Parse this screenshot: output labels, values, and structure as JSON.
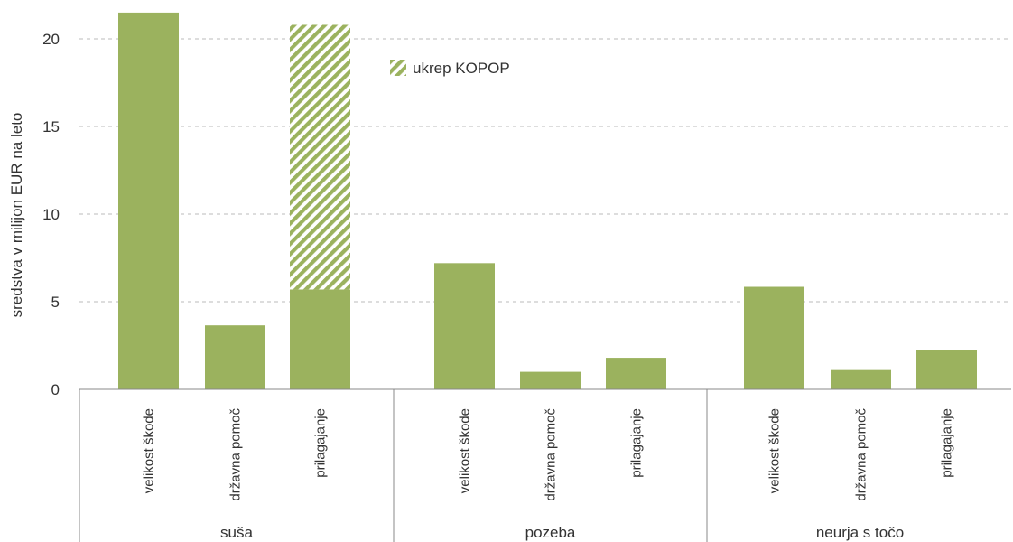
{
  "chart_data": {
    "type": "bar",
    "ylabel": "sredstva v milijon EUR na leto",
    "ylim": [
      0,
      20
    ],
    "yticks": [
      0,
      5,
      10,
      15,
      20
    ],
    "grid": "horizontal dashed",
    "colors": {
      "bar": "#9bb25e",
      "axis": "#888888",
      "grid": "#bbbbbb"
    },
    "groups": [
      {
        "label": "suša",
        "bars": [
          {
            "label": "velikost škode",
            "value": 21.5,
            "kopop": 0
          },
          {
            "label": "državna pomoč",
            "value": 3.65,
            "kopop": 0
          },
          {
            "label": "prilagajanje",
            "value": 5.7,
            "kopop": 15.1
          }
        ]
      },
      {
        "label": "pozeba",
        "bars": [
          {
            "label": "velikost škode",
            "value": 7.2,
            "kopop": 0
          },
          {
            "label": "državna pomoč",
            "value": 1.0,
            "kopop": 0
          },
          {
            "label": "prilagajanje",
            "value": 1.8,
            "kopop": 0
          }
        ]
      },
      {
        "label": "neurja s točo",
        "bars": [
          {
            "label": "velikost škode",
            "value": 5.85,
            "kopop": 0
          },
          {
            "label": "državna pomoč",
            "value": 1.1,
            "kopop": 0
          },
          {
            "label": "prilagajanje",
            "value": 2.25,
            "kopop": 0
          }
        ]
      }
    ],
    "legend": {
      "position": "top-center",
      "entries": [
        {
          "name": "ukrep KOPOP",
          "pattern": "diagonal-hatch"
        }
      ]
    }
  }
}
